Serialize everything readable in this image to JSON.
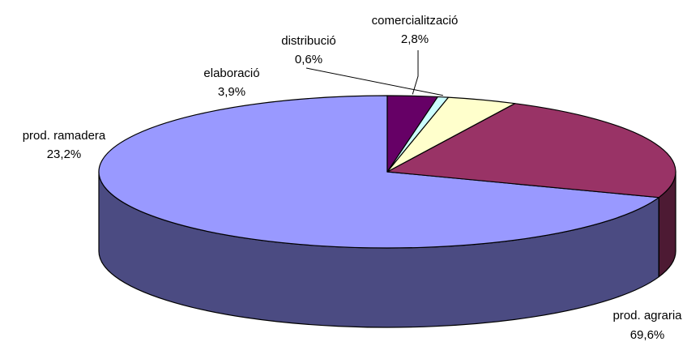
{
  "chart_data": {
    "type": "pie",
    "style": "3d",
    "title": "",
    "slices": [
      {
        "category": "prod. agraria",
        "value": 69.6,
        "label": "69,6%",
        "color": "#9999FF",
        "side_color": "#4B4B82"
      },
      {
        "category": "prod. ramadera",
        "value": 23.2,
        "label": "23,2%",
        "color": "#993366",
        "side_color": "#4D1A33"
      },
      {
        "category": "elaboració",
        "value": 3.9,
        "label": "3,9%",
        "color": "#FFFFCC",
        "side_color": "#808066"
      },
      {
        "category": "distribució",
        "value": 0.6,
        "label": "0,6%",
        "color": "#CCFFFF",
        "side_color": "#668080"
      },
      {
        "category": "comercialització",
        "value": 2.8,
        "label": "2,8%",
        "color": "#660066",
        "side_color": "#330033"
      }
    ],
    "legend": "none",
    "leader_lines": true
  }
}
